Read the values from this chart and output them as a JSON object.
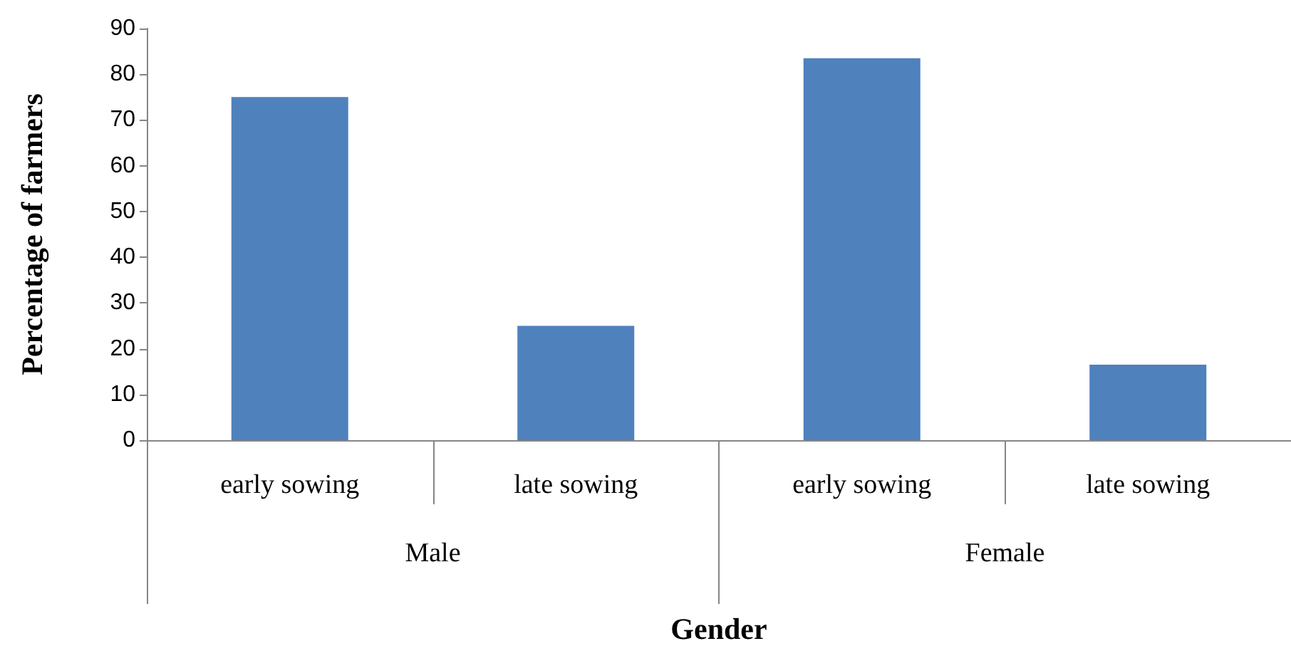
{
  "chart_data": {
    "type": "bar",
    "xlabel": "Gender",
    "ylabel": "Percentage of farmers",
    "categories": [
      "early sowing",
      "late sowing",
      "early sowing",
      "late sowing"
    ],
    "values": [
      75,
      25,
      83.5,
      16.5
    ],
    "color": "#4f81bd",
    "ylim": [
      0,
      90
    ],
    "yticks": [
      0,
      10,
      20,
      30,
      40,
      50,
      60,
      70,
      80,
      90
    ],
    "annotations": [
      "Male",
      "Female"
    ]
  }
}
